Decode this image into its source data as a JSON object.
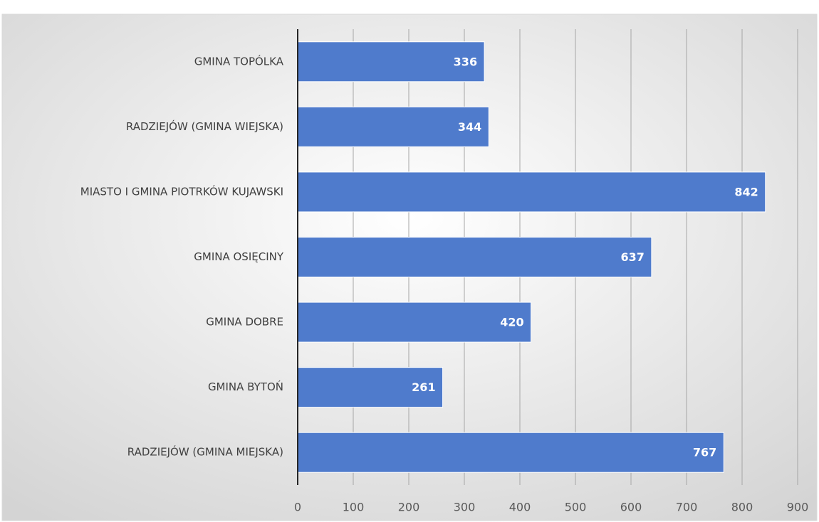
{
  "chart_data": {
    "type": "bar",
    "orientation": "horizontal",
    "categories": [
      "GMINA TOPÓLKA",
      "RADZIEJÓW (GMINA WIEJSKA)",
      "MIASTO I GMINA PIOTRKÓW KUJAWSKI",
      "GMINA OSIĘCINY",
      "GMINA DOBRE",
      "GMINA BYTOŃ",
      "RADZIEJÓW (GMINA MIEJSKA)"
    ],
    "values": [
      336,
      344,
      842,
      637,
      420,
      261,
      767
    ],
    "color": "#4f7bcc",
    "xlim": [
      0,
      900
    ],
    "xticks": [
      0,
      100,
      200,
      300,
      400,
      500,
      600,
      700,
      800,
      900
    ],
    "grid": true,
    "data_labels": true
  }
}
